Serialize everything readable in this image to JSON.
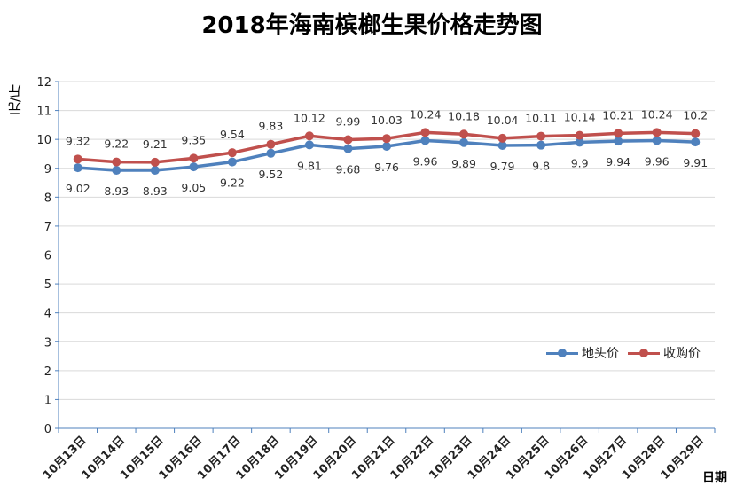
{
  "chart_data": {
    "type": "line",
    "title": "2018年海南槟榔生果价格走势图",
    "xlabel": "日期",
    "ylabel": "元/斤",
    "ylim": [
      0,
      12
    ],
    "yticks": [
      0,
      1,
      2,
      3,
      4,
      5,
      6,
      7,
      8,
      9,
      10,
      11,
      12
    ],
    "grid": true,
    "legend_position": "right",
    "categories": [
      "10月13日",
      "10月14日",
      "10月15日",
      "10月16日",
      "10月17日",
      "10月18日",
      "10月19日",
      "10月20日",
      "10月21日",
      "10月22日",
      "10月23日",
      "10月24日",
      "10月25日",
      "10月26日",
      "10月27日",
      "10月28日",
      "10月29日"
    ],
    "series": [
      {
        "name": "地头价",
        "color": "#4f81bd",
        "values": [
          9.02,
          8.93,
          8.93,
          9.05,
          9.22,
          9.52,
          9.81,
          9.68,
          9.76,
          9.96,
          9.89,
          9.79,
          9.8,
          9.9,
          9.94,
          9.96,
          9.91
        ],
        "labels": [
          "9.02",
          "8.93",
          "8.93",
          "9.05",
          "9.22",
          "9.52",
          "9.81",
          "9.68",
          "9.76",
          "9.96",
          "9.89",
          "9.79",
          "9.8",
          "9.9",
          "9.94",
          "9.96",
          "9.91"
        ]
      },
      {
        "name": "收购价",
        "color": "#c0504d",
        "values": [
          9.32,
          9.22,
          9.21,
          9.35,
          9.54,
          9.83,
          10.12,
          9.99,
          10.03,
          10.24,
          10.18,
          10.04,
          10.11,
          10.14,
          10.21,
          10.24,
          10.2
        ],
        "labels": [
          "9.32",
          "9.22",
          "9.21",
          "9.35",
          "9.54",
          "9.83",
          "10.12",
          "9.99",
          "10.03",
          "10.24",
          "10.18",
          "10.04",
          "10.11",
          "10.14",
          "10.21",
          "10.24",
          "10.2"
        ]
      }
    ]
  }
}
